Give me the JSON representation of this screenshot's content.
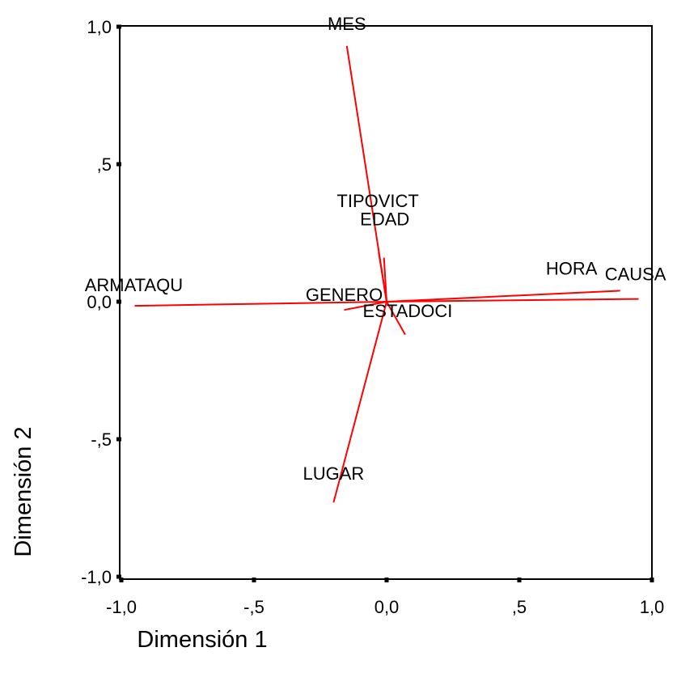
{
  "chart_data": {
    "type": "biplot",
    "title": "",
    "xlabel": "Dimensión 1",
    "ylabel": "Dimensión 2",
    "xlim": [
      -1.0,
      1.0
    ],
    "ylim": [
      -1.0,
      1.0
    ],
    "x_ticks": [
      {
        "value": -1.0,
        "label": "-1,0"
      },
      {
        "value": -0.5,
        "label": "-,5"
      },
      {
        "value": 0.0,
        "label": "0,0"
      },
      {
        "value": 0.5,
        "label": ",5"
      },
      {
        "value": 1.0,
        "label": "1,0"
      }
    ],
    "y_ticks": [
      {
        "value": 1.0,
        "label": "1,0"
      },
      {
        "value": 0.5,
        "label": ",5"
      },
      {
        "value": 0.0,
        "label": "0,0"
      },
      {
        "value": -0.5,
        "label": "-,5"
      },
      {
        "value": -1.0,
        "label": "-1,0"
      }
    ],
    "grid": false,
    "line_color": "#ff0000",
    "variables": [
      {
        "name": "MES",
        "x": -0.15,
        "y": 0.93
      },
      {
        "name": "TIPOVICT",
        "x": -0.03,
        "y": 0.18
      },
      {
        "name": "EDAD",
        "x": -0.01,
        "y": 0.16
      },
      {
        "name": "HORA",
        "x": 0.88,
        "y": 0.04
      },
      {
        "name": "CAUSA",
        "x": 0.95,
        "y": 0.01
      },
      {
        "name": "ARMATAQU",
        "x": -0.95,
        "y": -0.015
      },
      {
        "name": "GENERO",
        "x": -0.16,
        "y": -0.03
      },
      {
        "name": "ESTADOCI",
        "x": 0.07,
        "y": -0.12
      },
      {
        "name": "LUGAR",
        "x": -0.2,
        "y": -0.73
      }
    ]
  }
}
